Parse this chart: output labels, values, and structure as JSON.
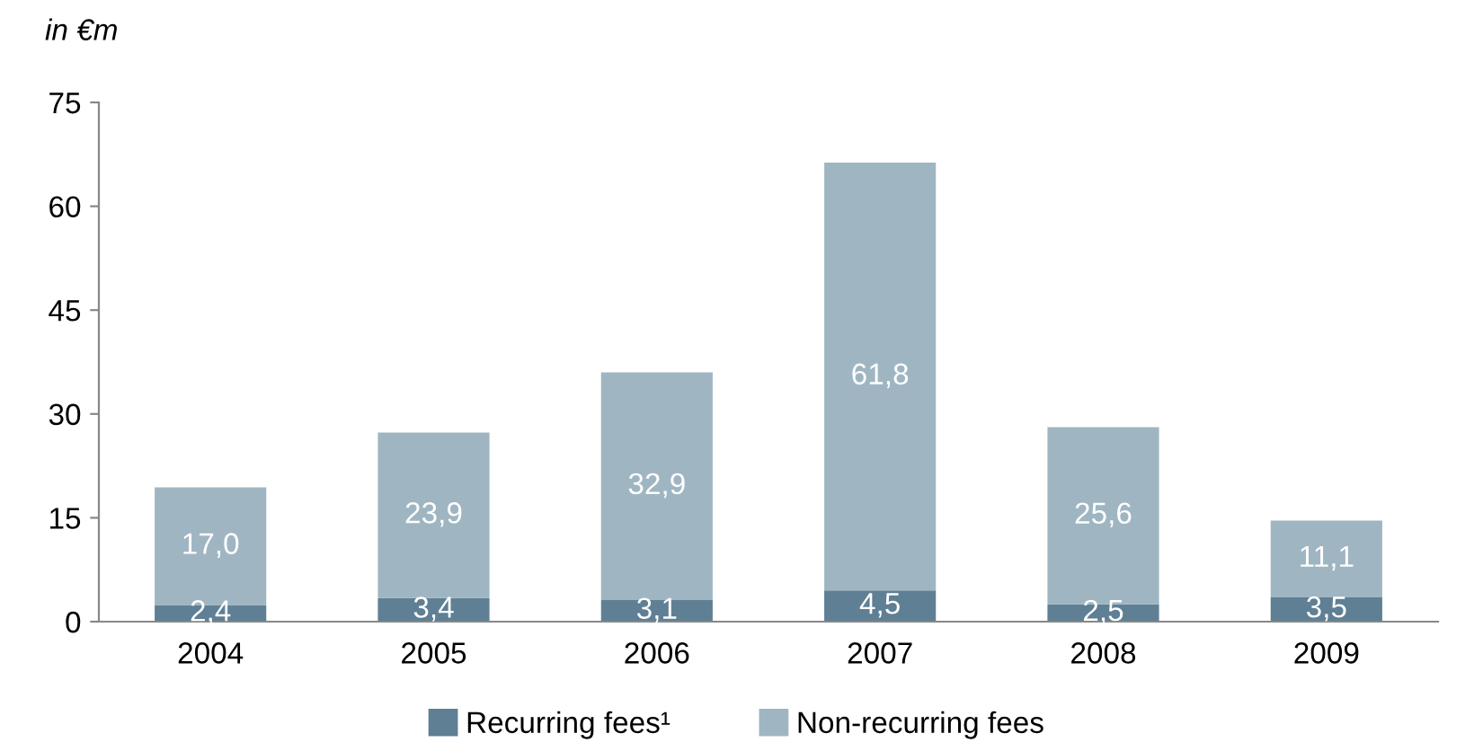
{
  "chart_data": {
    "type": "bar",
    "stacked": true,
    "ylabel": "in €m",
    "categories": [
      "2004",
      "2005",
      "2006",
      "2007",
      "2008",
      "2009"
    ],
    "series": [
      {
        "name": "Recurring fees¹",
        "color": "#5f7f94",
        "values": [
          2.4,
          3.4,
          3.1,
          4.5,
          2.5,
          3.5
        ],
        "value_labels": [
          "2,4",
          "3,4",
          "3,1",
          "4,5",
          "2,5",
          "3,5"
        ]
      },
      {
        "name": "Non-recurring fees",
        "color": "#9fb6c2",
        "values": [
          17.0,
          23.9,
          32.9,
          61.8,
          25.6,
          11.1
        ],
        "value_labels": [
          "17,0",
          "23,9",
          "32,9",
          "61,8",
          "25,6",
          "11,1"
        ]
      }
    ],
    "ylim": [
      0,
      75
    ],
    "yticks": [
      0,
      15,
      30,
      45,
      60,
      75
    ],
    "grid": false,
    "legend": "bottom"
  }
}
